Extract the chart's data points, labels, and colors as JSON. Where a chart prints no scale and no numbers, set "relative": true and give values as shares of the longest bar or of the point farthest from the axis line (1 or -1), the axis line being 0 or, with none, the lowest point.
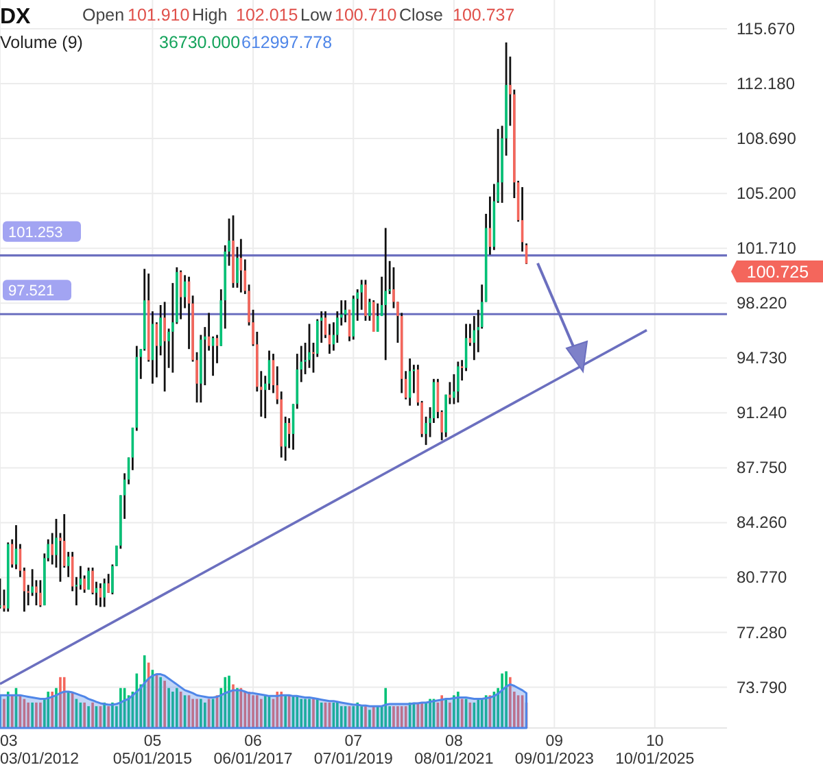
{
  "chart_data": [
    {
      "type": "candlestick",
      "title": "DX",
      "annotations": [
        "Open",
        "101.910",
        "High",
        "102.015",
        "Low",
        "100.710",
        "Close",
        "100.737",
        "100.725"
      ],
      "x": [
        "2012-03",
        "2012-04",
        "2012-05",
        "2012-06",
        "2012-07",
        "2012-08",
        "2012-09",
        "2012-10",
        "2012-11",
        "2012-12",
        "2013-01",
        "2013-02",
        "2013-03",
        "2013-04",
        "2013-05",
        "2013-06",
        "2013-07",
        "2013-08",
        "2013-09",
        "2013-10",
        "2013-11",
        "2013-12",
        "2014-01",
        "2014-02",
        "2014-03",
        "2014-04",
        "2014-05",
        "2014-06",
        "2014-07",
        "2014-08",
        "2014-09",
        "2014-10",
        "2014-11",
        "2014-12",
        "2015-01",
        "2015-02",
        "2015-03",
        "2015-04",
        "2015-05",
        "2015-06",
        "2015-07",
        "2015-08",
        "2015-09",
        "2015-10",
        "2015-11",
        "2015-12",
        "2016-01",
        "2016-02",
        "2016-03",
        "2016-04",
        "2016-05",
        "2016-06",
        "2016-07",
        "2016-08",
        "2016-09",
        "2016-10",
        "2016-11",
        "2016-12",
        "2017-01",
        "2017-02",
        "2017-03",
        "2017-04",
        "2017-05",
        "2017-06",
        "2017-07",
        "2017-08",
        "2017-09",
        "2017-10",
        "2017-11",
        "2017-12",
        "2018-01",
        "2018-02",
        "2018-03",
        "2018-04",
        "2018-05",
        "2018-06",
        "2018-07",
        "2018-08",
        "2018-09",
        "2018-10",
        "2018-11",
        "2018-12",
        "2019-01",
        "2019-02",
        "2019-03",
        "2019-04",
        "2019-05",
        "2019-06",
        "2019-07",
        "2019-08",
        "2019-09",
        "2019-10",
        "2019-11",
        "2019-12",
        "2020-01",
        "2020-02",
        "2020-03",
        "2020-04",
        "2020-05",
        "2020-06",
        "2020-07",
        "2020-08",
        "2020-09",
        "2020-10",
        "2020-11",
        "2020-12",
        "2021-01",
        "2021-02",
        "2021-03",
        "2021-04",
        "2021-05",
        "2021-06",
        "2021-07",
        "2021-08",
        "2021-09",
        "2021-10",
        "2021-11",
        "2021-12",
        "2022-01",
        "2022-02",
        "2022-03",
        "2022-04",
        "2022-05",
        "2022-06",
        "2022-07",
        "2022-08",
        "2022-09",
        "2022-10",
        "2022-11",
        "2022-12",
        "2023-01",
        "2023-02"
      ],
      "ohlc": [
        [
          78.9,
          80.7,
          78.8,
          79.0
        ],
        [
          79.0,
          80.0,
          78.6,
          78.8
        ],
        [
          78.8,
          83.0,
          78.6,
          82.9
        ],
        [
          82.9,
          83.2,
          81.4,
          81.6
        ],
        [
          81.6,
          84.1,
          81.3,
          82.6
        ],
        [
          82.6,
          82.9,
          80.8,
          81.2
        ],
        [
          81.2,
          81.4,
          78.6,
          79.9
        ],
        [
          79.9,
          80.3,
          79.0,
          79.8
        ],
        [
          79.8,
          81.3,
          79.6,
          80.2
        ],
        [
          80.2,
          80.6,
          79.0,
          79.8
        ],
        [
          79.8,
          80.6,
          78.9,
          79.0
        ],
        [
          79.0,
          82.3,
          79.0,
          82.0
        ],
        [
          82.0,
          83.2,
          81.8,
          82.9
        ],
        [
          82.9,
          83.6,
          81.6,
          82.2
        ],
        [
          82.2,
          84.5,
          81.4,
          83.3
        ],
        [
          83.3,
          83.6,
          80.5,
          83.1
        ],
        [
          83.1,
          84.8,
          81.4,
          81.5
        ],
        [
          81.5,
          82.4,
          80.8,
          82.1
        ],
        [
          82.1,
          82.4,
          79.9,
          80.2
        ],
        [
          80.2,
          80.8,
          79.0,
          80.3
        ],
        [
          80.3,
          81.5,
          80.0,
          80.7
        ],
        [
          80.7,
          80.9,
          79.8,
          80.0
        ],
        [
          80.0,
          81.4,
          80.0,
          81.2
        ],
        [
          81.2,
          81.4,
          79.7,
          79.8
        ],
        [
          79.8,
          80.5,
          79.0,
          80.1
        ],
        [
          80.1,
          80.4,
          78.9,
          79.5
        ],
        [
          79.5,
          80.7,
          78.9,
          80.4
        ],
        [
          80.4,
          81.0,
          79.8,
          79.8
        ],
        [
          79.8,
          81.6,
          79.7,
          81.5
        ],
        [
          81.5,
          82.8,
          81.5,
          82.8
        ],
        [
          82.8,
          86.0,
          82.6,
          86.0
        ],
        [
          86.0,
          87.4,
          84.5,
          87.0
        ],
        [
          87.0,
          88.4,
          86.7,
          88.4
        ],
        [
          88.4,
          90.3,
          87.6,
          90.3
        ],
        [
          90.3,
          95.5,
          90.1,
          94.8
        ],
        [
          94.8,
          95.3,
          93.4,
          95.3
        ],
        [
          95.3,
          100.4,
          95.2,
          98.4
        ],
        [
          98.4,
          100.1,
          94.5,
          94.6
        ],
        [
          94.6,
          97.7,
          93.1,
          96.9
        ],
        [
          96.9,
          97.0,
          93.5,
          95.5
        ],
        [
          95.5,
          98.1,
          94.9,
          97.3
        ],
        [
          97.3,
          98.3,
          92.6,
          95.8
        ],
        [
          95.8,
          96.6,
          94.1,
          96.4
        ],
        [
          96.4,
          99.5,
          93.8,
          97.0
        ],
        [
          97.0,
          100.5,
          96.9,
          100.2
        ],
        [
          100.2,
          100.3,
          97.2,
          98.6
        ],
        [
          98.6,
          100.0,
          97.9,
          99.6
        ],
        [
          99.6,
          99.9,
          95.3,
          98.2
        ],
        [
          98.2,
          98.7,
          94.5,
          94.6
        ],
        [
          94.6,
          95.1,
          91.9,
          93.1
        ],
        [
          93.1,
          96.2,
          91.9,
          95.9
        ],
        [
          95.9,
          96.7,
          93.0,
          96.1
        ],
        [
          96.1,
          97.6,
          95.2,
          95.5
        ],
        [
          95.5,
          96.1,
          93.6,
          96.0
        ],
        [
          96.0,
          96.2,
          94.4,
          95.5
        ],
        [
          95.5,
          99.1,
          95.5,
          98.4
        ],
        [
          98.4,
          101.9,
          96.6,
          101.5
        ],
        [
          101.5,
          103.6,
          100.6,
          102.2
        ],
        [
          102.2,
          103.8,
          99.2,
          99.5
        ],
        [
          99.5,
          101.8,
          99.2,
          101.1
        ],
        [
          101.1,
          102.3,
          98.9,
          100.3
        ],
        [
          100.3,
          101.0,
          98.8,
          99.0
        ],
        [
          99.0,
          99.4,
          96.8,
          97.0
        ],
        [
          97.0,
          97.8,
          95.5,
          95.6
        ],
        [
          95.6,
          96.4,
          92.6,
          92.9
        ],
        [
          92.9,
          93.9,
          91.0,
          92.7
        ],
        [
          92.7,
          93.6,
          90.9,
          93.1
        ],
        [
          93.1,
          95.2,
          92.7,
          94.6
        ],
        [
          94.6,
          95.0,
          92.5,
          93.0
        ],
        [
          93.0,
          94.2,
          91.8,
          92.1
        ],
        [
          92.1,
          92.6,
          88.4,
          89.1
        ],
        [
          89.1,
          91.0,
          88.2,
          90.6
        ],
        [
          90.6,
          90.9,
          89.0,
          89.9
        ],
        [
          89.9,
          91.8,
          88.9,
          91.8
        ],
        [
          91.8,
          95.0,
          91.5,
          94.0
        ],
        [
          94.0,
          95.5,
          93.2,
          94.5
        ],
        [
          94.5,
          95.7,
          93.7,
          94.6
        ],
        [
          94.6,
          96.9,
          94.1,
          95.1
        ],
        [
          95.1,
          95.7,
          93.8,
          95.0
        ],
        [
          95.0,
          97.2,
          94.8,
          97.1
        ],
        [
          97.1,
          97.7,
          95.7,
          97.3
        ],
        [
          97.3,
          97.7,
          96.0,
          96.2
        ],
        [
          96.2,
          96.9,
          95.0,
          95.6
        ],
        [
          95.6,
          97.0,
          95.2,
          96.2
        ],
        [
          96.2,
          97.7,
          95.7,
          97.3
        ],
        [
          97.3,
          98.4,
          96.8,
          97.5
        ],
        [
          97.5,
          98.4,
          97.0,
          97.8
        ],
        [
          97.8,
          97.8,
          95.8,
          96.1
        ],
        [
          96.1,
          98.7,
          95.9,
          98.5
        ],
        [
          98.5,
          99.1,
          97.1,
          98.9
        ],
        [
          98.9,
          99.7,
          97.8,
          99.4
        ],
        [
          99.4,
          99.7,
          97.1,
          97.4
        ],
        [
          97.4,
          98.5,
          97.1,
          98.3
        ],
        [
          98.3,
          98.4,
          96.4,
          96.4
        ],
        [
          96.4,
          98.2,
          96.4,
          97.4
        ],
        [
          97.4,
          99.9,
          97.4,
          98.1
        ],
        [
          98.1,
          103.0,
          94.6,
          99.0
        ],
        [
          99.0,
          100.9,
          98.8,
          99.1
        ],
        [
          99.1,
          100.5,
          97.9,
          98.3
        ],
        [
          98.3,
          98.3,
          95.7,
          97.4
        ],
        [
          97.4,
          97.6,
          92.5,
          93.4
        ],
        [
          93.4,
          93.9,
          92.1,
          92.2
        ],
        [
          92.2,
          94.7,
          91.7,
          93.9
        ],
        [
          93.9,
          94.3,
          92.5,
          94.0
        ],
        [
          94.0,
          94.3,
          91.7,
          91.9
        ],
        [
          91.9,
          92.0,
          89.7,
          89.9
        ],
        [
          89.9,
          91.0,
          89.2,
          90.6
        ],
        [
          90.6,
          91.6,
          89.7,
          90.9
        ],
        [
          90.9,
          93.4,
          90.6,
          93.2
        ],
        [
          93.2,
          93.4,
          90.9,
          91.3
        ],
        [
          91.3,
          91.4,
          89.5,
          90.0
        ],
        [
          90.0,
          92.4,
          89.7,
          92.4
        ],
        [
          92.4,
          93.2,
          91.8,
          92.2
        ],
        [
          92.2,
          93.7,
          91.8,
          92.6
        ],
        [
          92.6,
          94.5,
          91.9,
          94.2
        ],
        [
          94.2,
          94.6,
          93.3,
          94.1
        ],
        [
          94.1,
          96.9,
          93.9,
          96.0
        ],
        [
          96.0,
          96.9,
          95.5,
          95.7
        ],
        [
          95.7,
          97.4,
          94.6,
          96.5
        ],
        [
          96.5,
          97.8,
          95.1,
          96.7
        ],
        [
          96.7,
          99.4,
          96.6,
          98.3
        ],
        [
          98.3,
          103.9,
          98.3,
          103.0
        ],
        [
          103.0,
          105.0,
          101.3,
          101.8
        ],
        [
          101.8,
          105.8,
          101.6,
          104.7
        ],
        [
          104.7,
          109.3,
          104.6,
          105.9
        ],
        [
          105.9,
          109.5,
          104.6,
          108.7
        ],
        [
          108.7,
          114.8,
          107.6,
          112.1
        ],
        [
          112.1,
          113.9,
          109.5,
          111.5
        ],
        [
          111.5,
          111.8,
          104.9,
          105.9
        ],
        [
          105.9,
          106.0,
          103.4,
          103.5
        ],
        [
          103.5,
          105.6,
          101.5,
          102.1
        ],
        [
          101.91,
          102.015,
          100.71,
          100.737
        ]
      ],
      "series": [
        {
          "type": "line",
          "x": [
            "2012-03",
            "2025-08"
          ],
          "values": [
            74.0,
            96.5
          ],
          "color": "#6b6fbf"
        }
      ],
      "ref_lines": [
        {
          "axis": "y",
          "value": 101.253,
          "label": "101.253",
          "color": "#6b6fbf"
        },
        {
          "axis": "y",
          "value": 97.521,
          "label": "97.521",
          "color": "#6b6fbf"
        }
      ],
      "xlim": [
        "2012-03-01",
        "2027-04-01"
      ],
      "ylim": [
        71.2,
        117.5
      ],
      "xticks": [
        {
          "value": "2012-03-01",
          "label": null
        },
        {
          "value": "2015-05-01",
          "label": null
        },
        {
          "value": "2017-06-01",
          "label": null
        },
        {
          "value": "2019-07-01",
          "label": null
        },
        {
          "value": "2021-08-01",
          "label": null
        },
        {
          "value": "2023-09-01",
          "label": null
        },
        {
          "value": "2025-10-01",
          "label": null
        }
      ],
      "yticks": [
        {
          "value": 73.79,
          "label": "73.790"
        },
        {
          "value": 77.28,
          "label": "77.280"
        },
        {
          "value": 80.77,
          "label": "80.770"
        },
        {
          "value": 84.26,
          "label": "84.260"
        },
        {
          "value": 87.75,
          "label": "87.750"
        },
        {
          "value": 91.24,
          "label": "91.240"
        },
        {
          "value": 94.73,
          "label": "94.730"
        },
        {
          "value": 98.22,
          "label": "98.220"
        },
        {
          "value": 101.71,
          "label": "101.710"
        },
        {
          "value": 105.2,
          "label": "105.200"
        },
        {
          "value": 108.69,
          "label": "108.690"
        },
        {
          "value": 112.18,
          "label": "112.180"
        },
        {
          "value": 115.67,
          "label": "115.670"
        }
      ],
      "grid": true,
      "tick_labels": "y"
    },
    {
      "type": "bar",
      "title": "Volume (9)",
      "annotations": [
        "36730.000",
        "612997.778"
      ],
      "relative": true,
      "tick_labels": "x",
      "xlim": [
        "2012-03-01",
        "2027-04-01"
      ],
      "xticks": [
        {
          "value": "2012-03-01",
          "label": "03\n03/01/2012"
        },
        {
          "value": "2015-05-01",
          "label": "05\n05/01/2015"
        },
        {
          "value": "2017-06-01",
          "label": "06\n06/01/2017"
        },
        {
          "value": "2019-07-01",
          "label": "07\n07/01/2019"
        },
        {
          "value": "2021-08-01",
          "label": "08\n08/01/2021"
        },
        {
          "value": "2023-09-01",
          "label": "09\n09/01/2023"
        },
        {
          "value": "2025-10-01",
          "label": "10\n10/01/2025"
        }
      ],
      "x": [
        "2012-03",
        "2012-04",
        "2012-05",
        "2012-06",
        "2012-07",
        "2012-08",
        "2012-09",
        "2012-10",
        "2012-11",
        "2012-12",
        "2013-01",
        "2013-02",
        "2013-03",
        "2013-04",
        "2013-05",
        "2013-06",
        "2013-07",
        "2013-08",
        "2013-09",
        "2013-10",
        "2013-11",
        "2013-12",
        "2014-01",
        "2014-02",
        "2014-03",
        "2014-04",
        "2014-05",
        "2014-06",
        "2014-07",
        "2014-08",
        "2014-09",
        "2014-10",
        "2014-11",
        "2014-12",
        "2015-01",
        "2015-02",
        "2015-03",
        "2015-04",
        "2015-05",
        "2015-06",
        "2015-07",
        "2015-08",
        "2015-09",
        "2015-10",
        "2015-11",
        "2015-12",
        "2016-01",
        "2016-02",
        "2016-03",
        "2016-04",
        "2016-05",
        "2016-06",
        "2016-07",
        "2016-08",
        "2016-09",
        "2016-10",
        "2016-11",
        "2016-12",
        "2017-01",
        "2017-02",
        "2017-03",
        "2017-04",
        "2017-05",
        "2017-06",
        "2017-07",
        "2017-08",
        "2017-09",
        "2017-10",
        "2017-11",
        "2017-12",
        "2018-01",
        "2018-02",
        "2018-03",
        "2018-04",
        "2018-05",
        "2018-06",
        "2018-07",
        "2018-08",
        "2018-09",
        "2018-10",
        "2018-11",
        "2018-12",
        "2019-01",
        "2019-02",
        "2019-03",
        "2019-04",
        "2019-05",
        "2019-06",
        "2019-07",
        "2019-08",
        "2019-09",
        "2019-10",
        "2019-11",
        "2019-12",
        "2020-01",
        "2020-02",
        "2020-03",
        "2020-04",
        "2020-05",
        "2020-06",
        "2020-07",
        "2020-08",
        "2020-09",
        "2020-10",
        "2020-11",
        "2020-12",
        "2021-01",
        "2021-02",
        "2021-03",
        "2021-04",
        "2021-05",
        "2021-06",
        "2021-07",
        "2021-08",
        "2021-09",
        "2021-10",
        "2021-11",
        "2021-12",
        "2022-01",
        "2022-02",
        "2022-03",
        "2022-04",
        "2022-05",
        "2022-06",
        "2022-07",
        "2022-08",
        "2022-09",
        "2022-10",
        "2022-11",
        "2022-12",
        "2023-01",
        "2023-02"
      ],
      "series": [
        {
          "type": "bar",
          "values": [
            0.45,
            0.4,
            0.5,
            0.45,
            0.55,
            0.45,
            0.4,
            0.35,
            0.35,
            0.35,
            0.35,
            0.4,
            0.5,
            0.5,
            0.55,
            0.7,
            0.7,
            0.5,
            0.5,
            0.4,
            0.35,
            0.35,
            0.3,
            0.35,
            0.3,
            0.3,
            0.35,
            0.3,
            0.35,
            0.3,
            0.55,
            0.55,
            0.45,
            0.5,
            0.75,
            0.6,
            1.0,
            0.9,
            0.8,
            0.75,
            0.7,
            0.65,
            0.55,
            0.5,
            0.55,
            0.5,
            0.45,
            0.45,
            0.4,
            0.4,
            0.4,
            0.35,
            0.4,
            0.4,
            0.45,
            0.55,
            0.7,
            0.72,
            0.6,
            0.55,
            0.55,
            0.5,
            0.5,
            0.45,
            0.45,
            0.4,
            0.45,
            0.45,
            0.4,
            0.5,
            0.5,
            0.45,
            0.45,
            0.45,
            0.45,
            0.4,
            0.4,
            0.4,
            0.4,
            0.4,
            0.35,
            0.35,
            0.35,
            0.35,
            0.35,
            0.3,
            0.3,
            0.3,
            0.3,
            0.35,
            0.3,
            0.3,
            0.25,
            0.3,
            0.3,
            0.3,
            0.55,
            0.3,
            0.3,
            0.3,
            0.3,
            0.3,
            0.35,
            0.35,
            0.35,
            0.35,
            0.35,
            0.4,
            0.4,
            0.35,
            0.45,
            0.4,
            0.35,
            0.45,
            0.5,
            0.4,
            0.4,
            0.35,
            0.35,
            0.4,
            0.4,
            0.45,
            0.45,
            0.5,
            0.55,
            0.75,
            0.78,
            0.7,
            0.5,
            0.45,
            0.45,
            0.35
          ],
          "colors": [
            "#00c176",
            "#f4665c",
            "#00c176",
            "#f4665c",
            "#00c176",
            "#f4665c",
            "#f4665c",
            "#f4665c",
            "#00c176",
            "#f4665c",
            "#f4665c",
            "#00c176",
            "#00c176",
            "#f4665c",
            "#00c176",
            "#f4665c",
            "#f4665c",
            "#00c176",
            "#f4665c",
            "#00c176",
            "#00c176",
            "#f4665c",
            "#00c176",
            "#f4665c",
            "#00c176",
            "#f4665c",
            "#00c176",
            "#f4665c",
            "#00c176",
            "#00c176",
            "#00c176",
            "#00c176",
            "#00c176",
            "#00c176",
            "#00c176",
            "#00c176",
            "#00c176",
            "#f4665c",
            "#00c176",
            "#f4665c",
            "#00c176",
            "#f4665c",
            "#00c176",
            "#00c176",
            "#00c176",
            "#f4665c",
            "#00c176",
            "#f4665c",
            "#f4665c",
            "#f4665c",
            "#00c176",
            "#00c176",
            "#f4665c",
            "#00c176",
            "#f4665c",
            "#00c176",
            "#00c176",
            "#00c176",
            "#f4665c",
            "#00c176",
            "#f4665c",
            "#f4665c",
            "#f4665c",
            "#f4665c",
            "#f4665c",
            "#f4665c",
            "#00c176",
            "#00c176",
            "#f4665c",
            "#f4665c",
            "#f4665c",
            "#00c176",
            "#f4665c",
            "#00c176",
            "#00c176",
            "#00c176",
            "#00c176",
            "#00c176",
            "#f4665c",
            "#00c176",
            "#00c176",
            "#f4665c",
            "#f4665c",
            "#00c176",
            "#00c176",
            "#00c176",
            "#00c176",
            "#f4665c",
            "#00c176",
            "#00c176",
            "#00c176",
            "#f4665c",
            "#00c176",
            "#f4665c",
            "#00c176",
            "#00c176",
            "#00c176",
            "#00c176",
            "#f4665c",
            "#f4665c",
            "#f4665c",
            "#f4665c",
            "#00c176",
            "#00c176",
            "#f4665c",
            "#f4665c",
            "#00c176",
            "#00c176",
            "#00c176",
            "#f4665c",
            "#f4665c",
            "#00c176",
            "#f4665c",
            "#00c176",
            "#00c176",
            "#f4665c",
            "#00c176",
            "#f4665c",
            "#00c176",
            "#00c176",
            "#00c176",
            "#00c176",
            "#f4665c",
            "#00c176",
            "#00c176",
            "#00c176",
            "#00c176",
            "#f4665c",
            "#f4665c",
            "#f4665c",
            "#f4665c",
            "#f4665c"
          ]
        },
        {
          "type": "area",
          "color": "#4f86e8",
          "values": [
            0.45,
            0.45,
            0.45,
            0.45,
            0.45,
            0.45,
            0.44,
            0.43,
            0.42,
            0.41,
            0.4,
            0.4,
            0.41,
            0.43,
            0.45,
            0.48,
            0.5,
            0.5,
            0.49,
            0.47,
            0.45,
            0.43,
            0.4,
            0.38,
            0.36,
            0.34,
            0.33,
            0.32,
            0.32,
            0.33,
            0.35,
            0.38,
            0.4,
            0.45,
            0.5,
            0.55,
            0.62,
            0.68,
            0.72,
            0.74,
            0.74,
            0.72,
            0.68,
            0.64,
            0.6,
            0.56,
            0.52,
            0.5,
            0.48,
            0.45,
            0.44,
            0.43,
            0.42,
            0.42,
            0.43,
            0.45,
            0.48,
            0.5,
            0.52,
            0.52,
            0.52,
            0.5,
            0.48,
            0.48,
            0.47,
            0.46,
            0.45,
            0.44,
            0.44,
            0.44,
            0.45,
            0.45,
            0.45,
            0.44,
            0.44,
            0.43,
            0.42,
            0.42,
            0.41,
            0.4,
            0.39,
            0.38,
            0.37,
            0.37,
            0.36,
            0.35,
            0.34,
            0.33,
            0.32,
            0.32,
            0.31,
            0.31,
            0.3,
            0.3,
            0.3,
            0.3,
            0.32,
            0.33,
            0.33,
            0.33,
            0.33,
            0.33,
            0.33,
            0.34,
            0.34,
            0.35,
            0.35,
            0.36,
            0.37,
            0.38,
            0.39,
            0.4,
            0.4,
            0.41,
            0.42,
            0.42,
            0.42,
            0.41,
            0.4,
            0.4,
            0.4,
            0.41,
            0.42,
            0.44,
            0.47,
            0.52,
            0.57,
            0.6,
            0.58,
            0.55,
            0.52,
            0.48
          ]
        }
      ]
    }
  ]
}
